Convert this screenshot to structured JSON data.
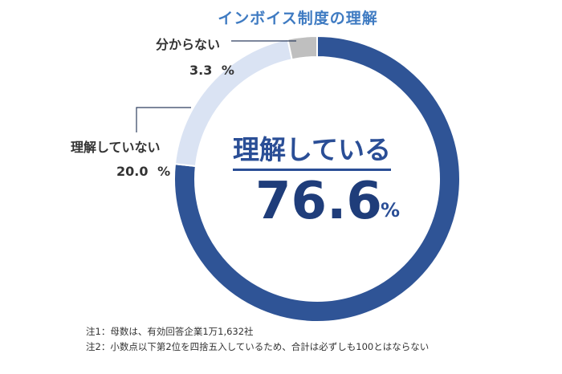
{
  "chart_data": {
    "type": "pie",
    "title": "インボイス制度の理解",
    "categories": [
      "理解している",
      "理解していない",
      "分からない"
    ],
    "values": [
      76.6,
      20.0,
      3.3
    ],
    "unit": "%",
    "colors": [
      "#2f5496",
      "#dae3f3",
      "#bfbfbf"
    ],
    "labels": {
      "understand": {
        "name": "理解している",
        "value": "76.6",
        "unit": "%"
      },
      "not_understand": {
        "name": "理解していない",
        "value": "20.0",
        "unit": "%"
      },
      "unknown": {
        "name": "分からない",
        "value": "3.3",
        "unit": "%"
      }
    },
    "notes": [
      "注1：母数は、有効回答企業1万1,632社",
      "注2：小数点以下第2位を四捨五入しているため、合計は必ずしも100とはならない"
    ]
  }
}
